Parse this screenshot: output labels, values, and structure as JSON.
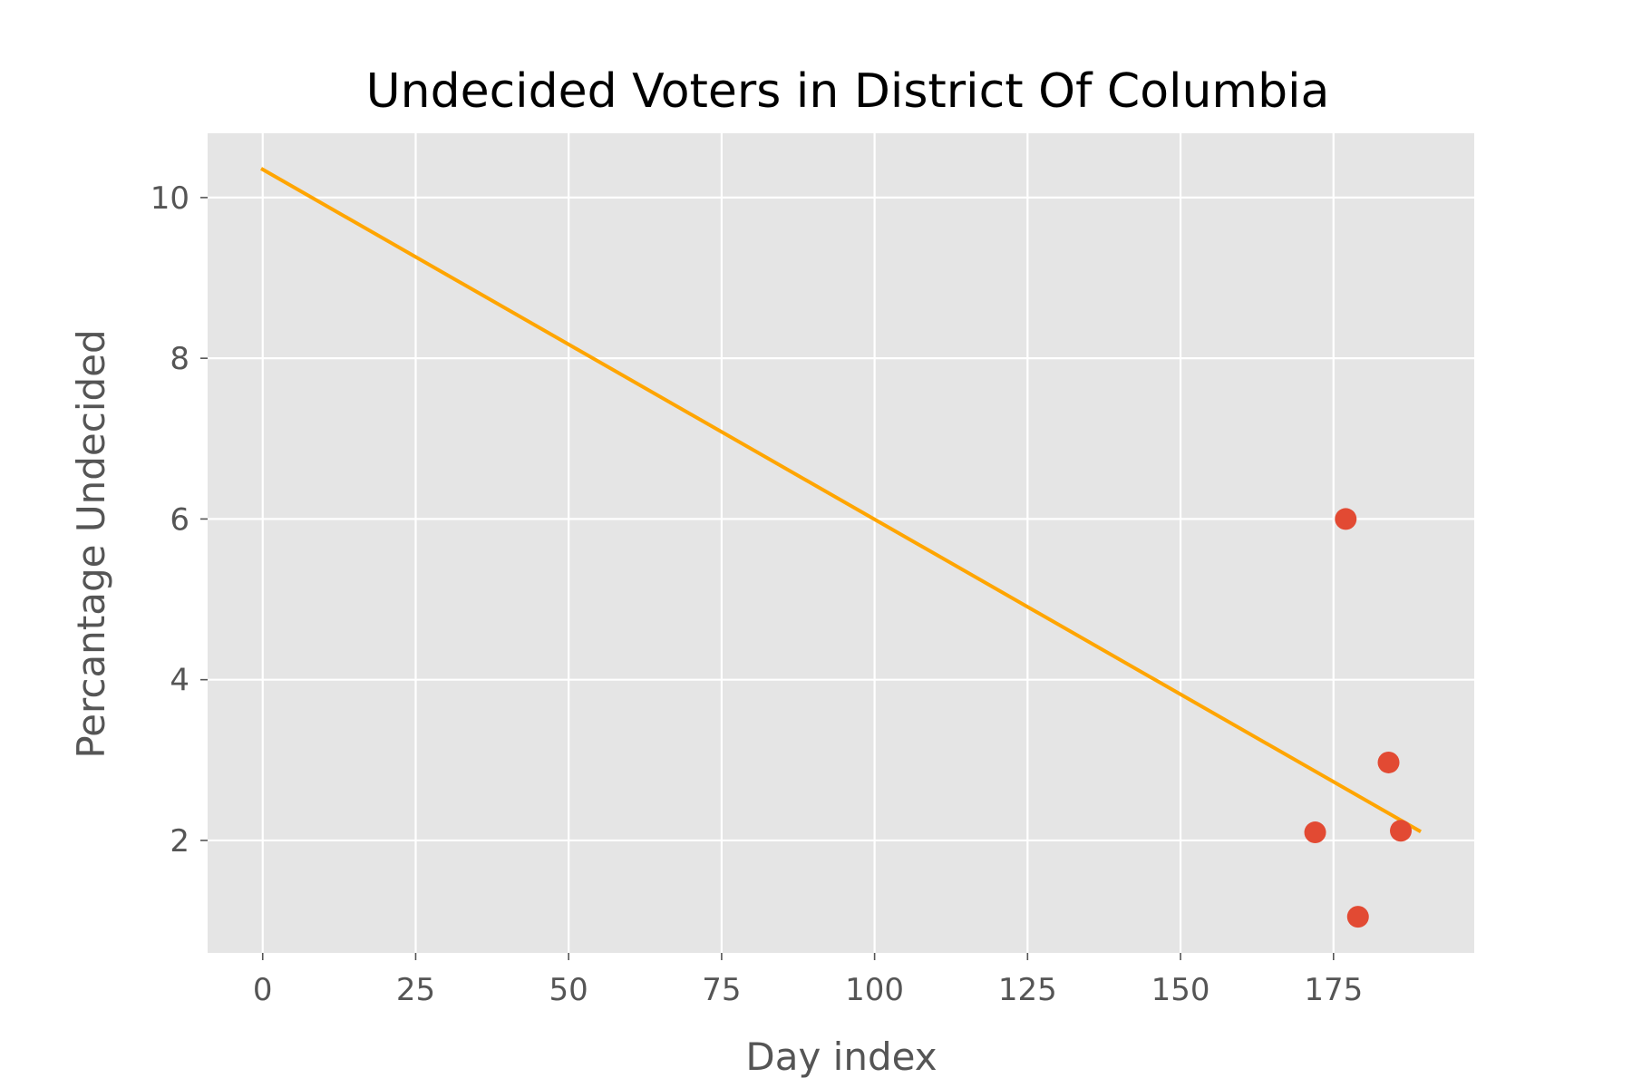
{
  "chart_data": {
    "type": "scatter",
    "title": "Undecided Voters in District Of Columbia",
    "xlabel": "Day index",
    "ylabel": "Percantage Undecided",
    "xlim": [
      -9,
      198
    ],
    "ylim": [
      0.6,
      10.8
    ],
    "x_ticks": [
      0,
      25,
      50,
      75,
      100,
      125,
      150,
      175
    ],
    "y_ticks": [
      2,
      4,
      6,
      8,
      10
    ],
    "grid": true,
    "series": [
      {
        "type": "scatter",
        "color": "#e24a33",
        "points": [
          {
            "x": 172,
            "y": 2.1
          },
          {
            "x": 177,
            "y": 6.0
          },
          {
            "x": 179,
            "y": 1.05
          },
          {
            "x": 184,
            "y": 2.97
          },
          {
            "x": 186,
            "y": 2.12
          }
        ]
      },
      {
        "type": "line",
        "color": "#ffa500",
        "points": [
          {
            "x": 0,
            "y": 10.35
          },
          {
            "x": 189,
            "y": 2.12
          }
        ]
      }
    ]
  }
}
